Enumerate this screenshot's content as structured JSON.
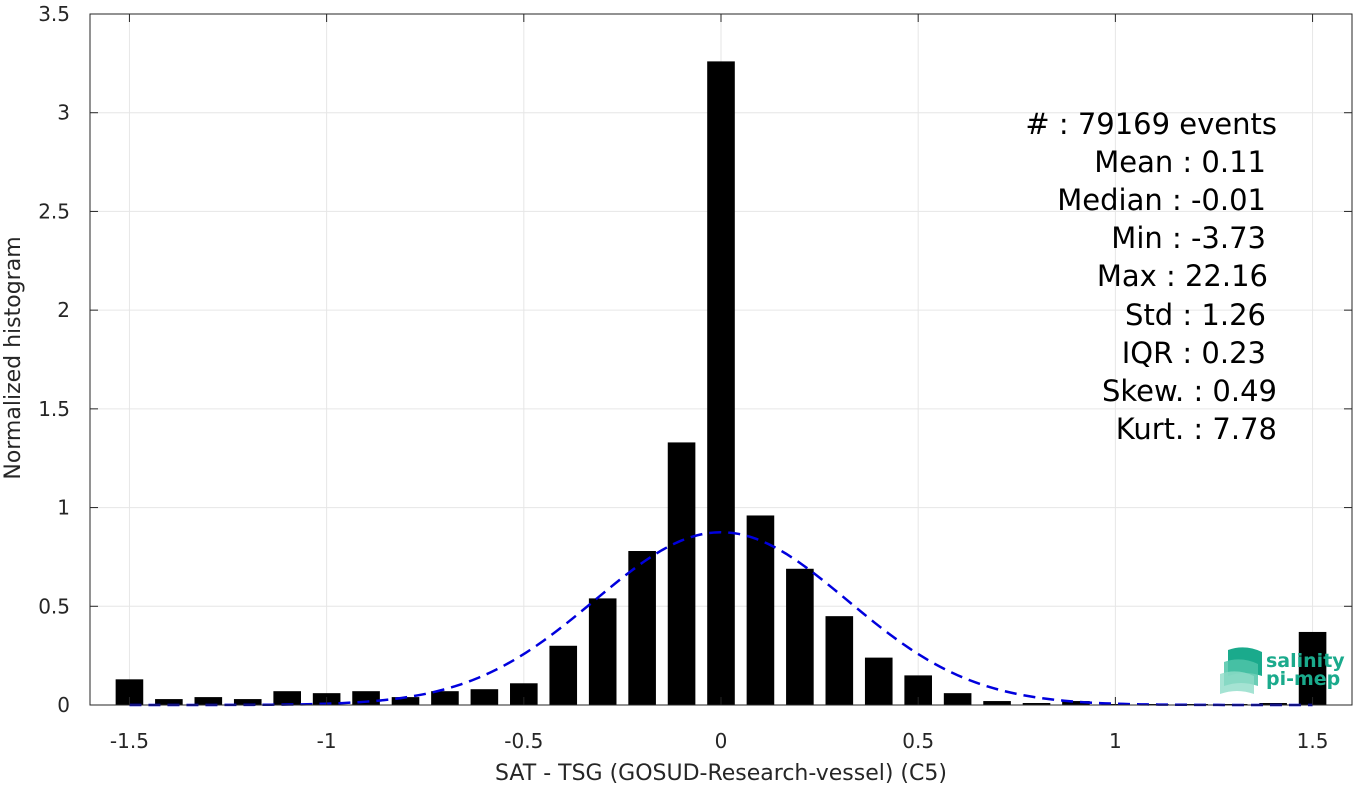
{
  "chart_data": {
    "type": "bar",
    "xlabel": "SAT - TSG (GOSUD-Research-vessel) (C5)",
    "ylabel": "Normalized histogram",
    "xlim": [
      -1.6,
      1.6
    ],
    "ylim": [
      0,
      3.5
    ],
    "xticks": [
      -1.5,
      -1,
      -0.5,
      0,
      0.5,
      1,
      1.5
    ],
    "xtick_labels": [
      "-1.5",
      "-1",
      "-0.5",
      "0",
      "0.5",
      "1",
      "1.5"
    ],
    "yticks": [
      0,
      0.5,
      1,
      1.5,
      2,
      2.5,
      3,
      3.5
    ],
    "ytick_labels": [
      "0",
      "0.5",
      "1",
      "1.5",
      "2",
      "2.5",
      "3",
      "3.5"
    ],
    "grid": true,
    "bar_width": 0.07,
    "bar_color": "#000000",
    "bins": [
      -1.5,
      -1.4,
      -1.3,
      -1.2,
      -1.1,
      -1.0,
      -0.9,
      -0.8,
      -0.7,
      -0.6,
      -0.5,
      -0.4,
      -0.3,
      -0.2,
      -0.1,
      0.0,
      0.1,
      0.2,
      0.3,
      0.4,
      0.5,
      0.6,
      0.7,
      0.8,
      0.9,
      1.0,
      1.1,
      1.2,
      1.3,
      1.4,
      1.5
    ],
    "values": [
      0.13,
      0.03,
      0.04,
      0.03,
      0.07,
      0.06,
      0.07,
      0.04,
      0.07,
      0.08,
      0.11,
      0.3,
      0.54,
      0.78,
      1.33,
      3.26,
      0.96,
      0.69,
      0.45,
      0.24,
      0.15,
      0.06,
      0.02,
      0.01,
      0.02,
      0.005,
      0.005,
      0.005,
      0.005,
      0.01,
      0.37
    ],
    "fit_curve": {
      "type": "gaussian",
      "color": "#0000dd",
      "style": "dashed",
      "mean": 0.0,
      "peak": 0.875,
      "sigma": 0.32
    },
    "stats_lines": [
      "#  : 79169 events",
      "Mean : 0.11",
      "Median : -0.01",
      "Min : -3.73",
      "Max : 22.16",
      "Std : 1.26",
      "IQR : 0.23",
      "Skew. : 0.49",
      "Kurt. : 7.78"
    ]
  },
  "logo": {
    "line1": "salinity",
    "line2": "pi-mep",
    "color": "#1aaa8c"
  }
}
